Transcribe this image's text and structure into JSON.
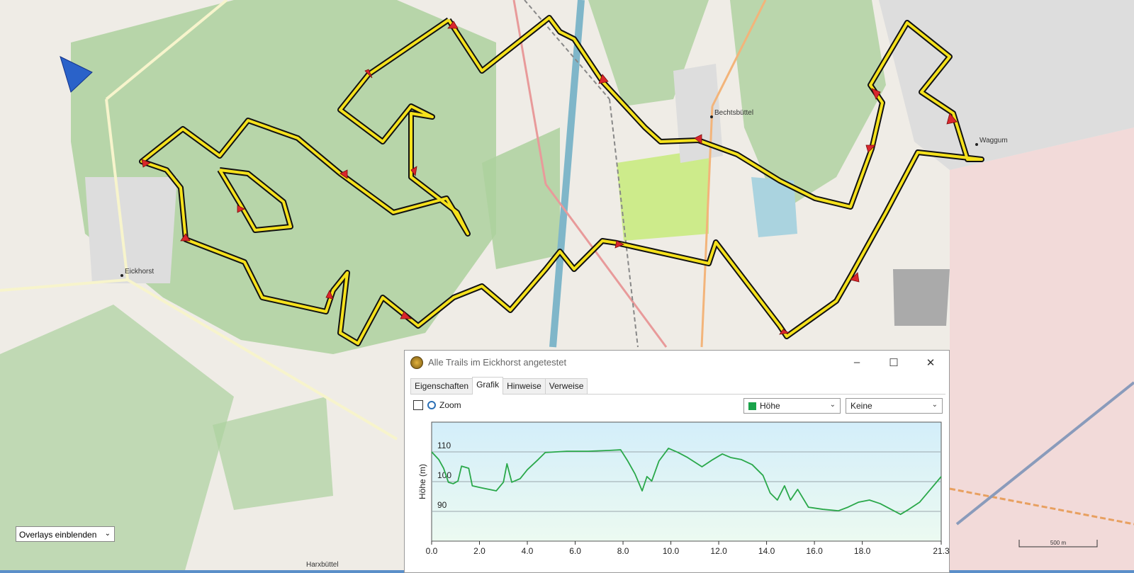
{
  "map": {
    "places": [
      "Eickhorst",
      "Bechtsbüttel",
      "Waggum",
      "Harxbüttel"
    ],
    "scale": "500 m",
    "overlays": "Overlays einblenden"
  },
  "window": {
    "title": "Alle Trails im Eickhorst angetestet",
    "tabs": [
      "Eigenschaften",
      "Grafik",
      "Hinweise",
      "Verweise"
    ],
    "zoom": "Zoom",
    "measure": "Höhe",
    "secondary": "Keine"
  },
  "chart_data": {
    "type": "line",
    "ylabel": "Höhe (m)",
    "color": "#2aa84a",
    "x": [
      0,
      0.3,
      0.5,
      0.7,
      0.9,
      1.1,
      1.25,
      1.55,
      1.7,
      2.1,
      2.7,
      3.0,
      3.15,
      3.35,
      3.7,
      4.0,
      4.45,
      4.75,
      5.65,
      6.55,
      7.45,
      7.9,
      8.2,
      8.5,
      8.8,
      9.0,
      9.2,
      9.5,
      9.9,
      10.3,
      10.7,
      11.3,
      11.75,
      12.15,
      12.5,
      12.95,
      13.4,
      13.85,
      14.15,
      14.45,
      14.75,
      15.0,
      15.3,
      15.75,
      16.35,
      17.0,
      17.4,
      17.85,
      18.3,
      18.75,
      19.2,
      19.6,
      19.95,
      20.4,
      20.85,
      21.3
    ],
    "values": [
      110,
      107.4,
      104.5,
      99.8,
      99.3,
      100.2,
      105.2,
      104.5,
      98.6,
      97.9,
      96.9,
      99.8,
      106,
      99.8,
      101,
      104,
      107.4,
      109.8,
      110.2,
      110.2,
      110.5,
      110.7,
      106.9,
      102.6,
      96.9,
      101.7,
      100.2,
      106.9,
      111.2,
      109.8,
      108.1,
      105,
      107.4,
      109.3,
      108.1,
      107.4,
      105.7,
      102.1,
      96.2,
      93.8,
      98.6,
      93.8,
      97.4,
      91.4,
      90.7,
      90.2,
      91.4,
      93.1,
      93.8,
      92.6,
      90.7,
      89,
      90.7,
      93.1,
      97.4,
      101.7
    ],
    "xlim": [
      0,
      21.3
    ],
    "ylim": [
      80,
      120
    ],
    "xticks": [
      {
        "value": 0,
        "label": "0.0"
      },
      {
        "value": 2,
        "label": "2.0"
      },
      {
        "value": 4,
        "label": "4.0"
      },
      {
        "value": 6,
        "label": "6.0"
      },
      {
        "value": 8,
        "label": "8.0"
      },
      {
        "value": 10,
        "label": "10.0"
      },
      {
        "value": 12,
        "label": "12.0"
      },
      {
        "value": 14,
        "label": "14.0"
      },
      {
        "value": 16,
        "label": "16.0"
      },
      {
        "value": 18,
        "label": "18.0"
      },
      21.3
    ],
    "yticks": [
      90,
      100,
      110
    ],
    "grid": true
  }
}
